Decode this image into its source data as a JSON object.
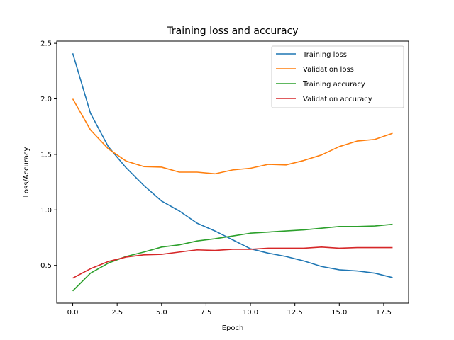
{
  "chart_data": {
    "type": "line",
    "title": "Training loss and accuracy",
    "xlabel": "Epoch",
    "ylabel": "Loss/Accuracy",
    "xlim": [
      -0.9,
      18.9
    ],
    "ylim": [
      0.16,
      2.52
    ],
    "xticks": [
      0,
      2.5,
      5,
      7.5,
      10,
      12.5,
      15,
      17.5
    ],
    "xtick_labels": [
      "0.0",
      "2.5",
      "5.0",
      "7.5",
      "10.0",
      "12.5",
      "15.0",
      "17.5"
    ],
    "yticks": [
      0.5,
      1.0,
      1.5,
      2.0,
      2.5
    ],
    "ytick_labels": [
      "0.5",
      "1.0",
      "1.5",
      "2.0",
      "2.5"
    ],
    "grid": false,
    "legend_position": "top-right",
    "x": [
      0,
      1,
      2,
      3,
      4,
      5,
      6,
      7,
      8,
      9,
      10,
      11,
      12,
      13,
      14,
      15,
      16,
      17,
      18
    ],
    "series": [
      {
        "name": "Training loss",
        "color": "#1f77b4",
        "values": [
          2.41,
          1.87,
          1.57,
          1.38,
          1.22,
          1.08,
          0.99,
          0.88,
          0.81,
          0.73,
          0.65,
          0.61,
          0.58,
          0.54,
          0.49,
          0.46,
          0.45,
          0.43,
          0.39
        ]
      },
      {
        "name": "Validation loss",
        "color": "#ff7f0e",
        "values": [
          2.0,
          1.72,
          1.55,
          1.44,
          1.39,
          1.385,
          1.34,
          1.34,
          1.325,
          1.36,
          1.375,
          1.41,
          1.405,
          1.445,
          1.495,
          1.57,
          1.62,
          1.635,
          1.69
        ]
      },
      {
        "name": "Training accuracy",
        "color": "#2ca02c",
        "values": [
          0.27,
          0.43,
          0.52,
          0.58,
          0.62,
          0.665,
          0.685,
          0.72,
          0.74,
          0.765,
          0.79,
          0.8,
          0.81,
          0.82,
          0.835,
          0.85,
          0.85,
          0.855,
          0.87
        ]
      },
      {
        "name": "Validation accuracy",
        "color": "#d62728",
        "values": [
          0.385,
          0.47,
          0.535,
          0.575,
          0.595,
          0.6,
          0.62,
          0.64,
          0.635,
          0.645,
          0.645,
          0.655,
          0.655,
          0.655,
          0.665,
          0.655,
          0.66,
          0.66,
          0.66
        ]
      }
    ]
  }
}
